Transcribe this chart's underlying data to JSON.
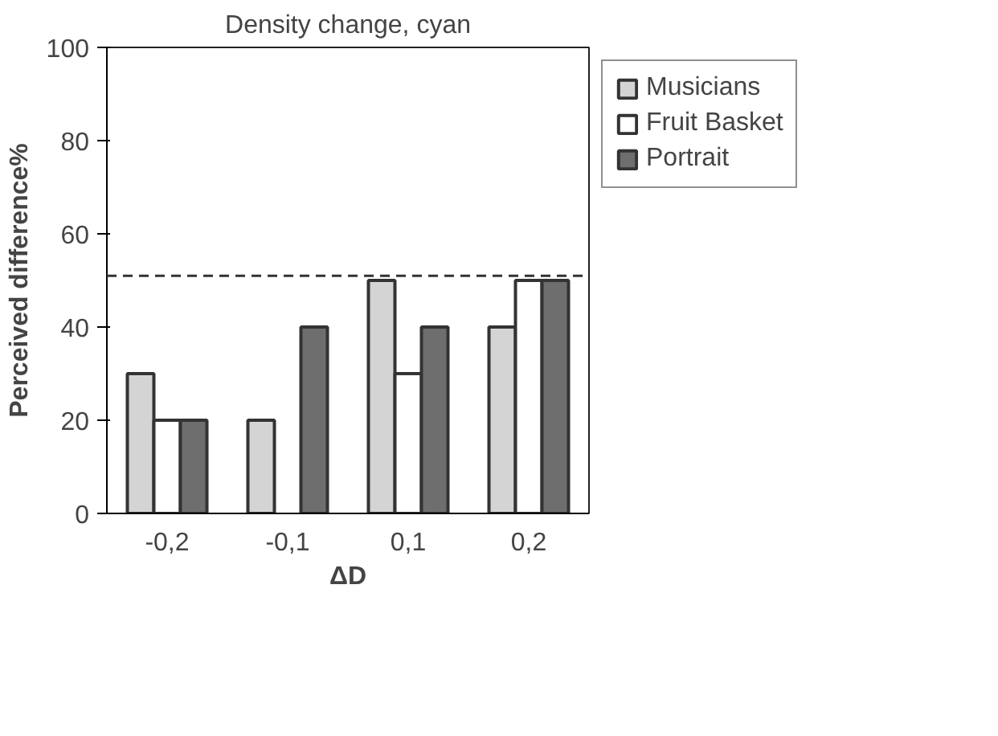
{
  "chart_data": {
    "type": "bar",
    "title": "Density change, cyan",
    "xlabel": "ΔD",
    "ylabel": "Perceived difference%",
    "categories": [
      "-0,2",
      "-0,1",
      "0,1",
      "0,2"
    ],
    "series": [
      {
        "name": "Musicians",
        "color": "#d4d4d4",
        "values": [
          30,
          20,
          50,
          40
        ]
      },
      {
        "name": "Fruit Basket",
        "color": "#ffffff",
        "values": [
          20,
          null,
          30,
          50
        ]
      },
      {
        "name": "Portrait",
        "color": "#6e6e6e",
        "values": [
          20,
          40,
          40,
          50
        ]
      }
    ],
    "ylim": [
      0,
      100
    ],
    "yticks": [
      0,
      20,
      40,
      60,
      80,
      100
    ],
    "ref_lines": [
      {
        "axis": "y",
        "value": 51,
        "line_style": "dashed",
        "color": "#333333"
      }
    ],
    "legend": "right",
    "grid": false
  }
}
